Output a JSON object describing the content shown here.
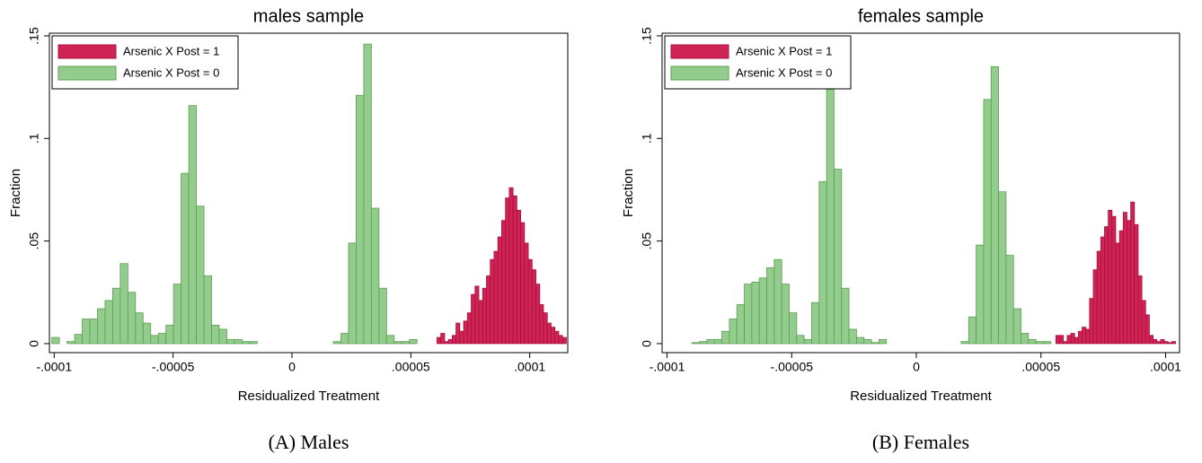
{
  "chart_data": [
    {
      "type": "histogram",
      "title": "males sample",
      "xlabel": "Residualized Treatment",
      "ylabel": "Fraction",
      "caption": "(A) Males",
      "xlim": [
        -0.000102,
        0.000116
      ],
      "ylim": [
        -0.0044,
        0.1513
      ],
      "xticks": [
        {
          "value": -0.0001,
          "label": "-.0001"
        },
        {
          "value": -5e-05,
          "label": "-.00005"
        },
        0,
        {
          "value": 5e-05,
          "label": ".00005"
        },
        {
          "value": 0.0001,
          "label": ".0001"
        }
      ],
      "yticks": [
        0,
        {
          "value": 0.05,
          "label": ".05"
        },
        {
          "value": 0.1,
          "label": ".1"
        },
        {
          "value": 0.15,
          "label": ".15"
        }
      ],
      "legend": "upper left",
      "series": [
        {
          "name": "Arsenic X Post = 1",
          "color": "#cf2355",
          "edgecolor": "#a8103e",
          "bins": [
            6.1e-05,
            6.26e-05,
            6.42e-05,
            6.58e-05,
            6.74e-05,
            6.9e-05,
            7.06e-05,
            7.22e-05,
            7.38e-05,
            7.54e-05,
            7.7e-05,
            7.86e-05,
            8.02e-05,
            8.18e-05,
            8.34e-05,
            8.5e-05,
            8.66e-05,
            8.82e-05,
            8.98e-05,
            9.14e-05,
            9.3e-05,
            9.46e-05,
            9.62e-05,
            9.78e-05,
            9.94e-05,
            0.000101,
            0.0001026,
            0.0001042,
            0.0001058,
            0.0001074,
            0.000109,
            0.0001106,
            0.0001122,
            0.0001138,
            0.0001154
          ],
          "values": [
            0.003,
            0.005,
            0.001,
            0.002,
            0.004,
            0.01,
            0.006,
            0.011,
            0.015,
            0.024,
            0.028,
            0.021,
            0.027,
            0.033,
            0.041,
            0.045,
            0.052,
            0.06,
            0.071,
            0.076,
            0.072,
            0.065,
            0.059,
            0.049,
            0.041,
            0.036,
            0.029,
            0.019,
            0.015,
            0.01,
            0.008,
            0.006,
            0.004,
            0.003
          ]
        },
        {
          "name": "Arsenic X Post = 0",
          "color": "#93cc8c",
          "edgecolor": "#5a9f52",
          "bins": [
            -0.000101,
            -9.78e-05,
            -9.46e-05,
            -9.14e-05,
            -8.82e-05,
            -8.5e-05,
            -8.18e-05,
            -7.86e-05,
            -7.54e-05,
            -7.22e-05,
            -6.9e-05,
            -6.58e-05,
            -6.26e-05,
            -5.94e-05,
            -5.62e-05,
            -5.3e-05,
            -4.98e-05,
            -4.66e-05,
            -4.34e-05,
            -4.02e-05,
            -3.7e-05,
            -3.38e-05,
            -3.06e-05,
            -2.74e-05,
            -2.42e-05,
            -2.1e-05,
            -1.78e-05,
            -1.46e-05,
            -1.14e-05,
            -8.2e-06,
            -5e-06,
            -1.8e-06,
            1.4e-06,
            4.6e-06,
            7.8e-06,
            1.1e-05,
            1.42e-05,
            1.74e-05,
            2.06e-05,
            2.38e-05,
            2.7e-05,
            3.02e-05,
            3.34e-05,
            3.66e-05,
            3.98e-05,
            4.3e-05,
            4.62e-05,
            4.94e-05,
            5.26e-05
          ],
          "values": [
            0.003,
            0,
            0.001,
            0.0045,
            0.012,
            0.012,
            0.017,
            0.021,
            0.027,
            0.039,
            0.025,
            0.015,
            0.01,
            0.004,
            0.005,
            0.009,
            0.029,
            0.083,
            0.116,
            0.067,
            0.033,
            0.009,
            0.007,
            0.002,
            0.002,
            0.001,
            0.001,
            0,
            0,
            0,
            0,
            0,
            0,
            0,
            0,
            0,
            0,
            0.001,
            0.005,
            0.049,
            0.121,
            0.146,
            0.066,
            0.027,
            0.004,
            0.001,
            0.001,
            0.002
          ]
        }
      ]
    },
    {
      "type": "histogram",
      "title": "females sample",
      "xlabel": "Residualized Treatment",
      "ylabel": "Fraction",
      "caption": "(B) Females",
      "xlim": [
        -0.000102,
        0.0001056
      ],
      "ylim": [
        -0.0044,
        0.1513
      ],
      "xticks": [
        {
          "value": -0.0001,
          "label": "-.0001"
        },
        {
          "value": -5e-05,
          "label": "-.00005"
        },
        0,
        {
          "value": 5e-05,
          "label": ".00005"
        },
        {
          "value": 0.0001,
          "label": ".0001"
        }
      ],
      "yticks": [
        0,
        {
          "value": 0.05,
          "label": ".05"
        },
        {
          "value": 0.1,
          "label": ".1"
        },
        {
          "value": 0.15,
          "label": ".15"
        }
      ],
      "legend": "upper left",
      "series": [
        {
          "name": "Arsenic X Post = 1",
          "color": "#cf2355",
          "edgecolor": "#a8103e",
          "bins": [
            5.6e-05,
            5.75e-05,
            5.9e-05,
            6.05e-05,
            6.2e-05,
            6.35e-05,
            6.5e-05,
            6.65e-05,
            6.8e-05,
            6.95e-05,
            7.1e-05,
            7.25e-05,
            7.4e-05,
            7.55e-05,
            7.7e-05,
            7.85e-05,
            8e-05,
            8.15e-05,
            8.3e-05,
            8.45e-05,
            8.6e-05,
            8.75e-05,
            8.9e-05,
            9.05e-05,
            9.2e-05,
            9.35e-05,
            9.5e-05,
            9.65e-05,
            9.8e-05,
            9.95e-05,
            0.000101,
            0.0001025,
            0.000104
          ],
          "values": [
            0.004,
            0.004,
            0.001,
            0.004,
            0.005,
            0.003,
            0.006,
            0.008,
            0.007,
            0.022,
            0.036,
            0.045,
            0.052,
            0.057,
            0.065,
            0.062,
            0.049,
            0.055,
            0.064,
            0.06,
            0.069,
            0.058,
            0.033,
            0.021,
            0.014,
            0.004,
            0.002,
            0.001,
            0.002,
            0.001,
            0.0005,
            0.001
          ]
        },
        {
          "name": "Arsenic X Post = 0",
          "color": "#93cc8c",
          "edgecolor": "#5a9f52",
          "bins": [
            -9e-05,
            -8.7e-05,
            -8.4e-05,
            -8.1e-05,
            -7.8e-05,
            -7.5e-05,
            -7.2e-05,
            -6.9e-05,
            -6.6e-05,
            -6.3e-05,
            -6e-05,
            -5.7e-05,
            -5.4e-05,
            -5.1e-05,
            -4.8e-05,
            -4.5e-05,
            -4.2e-05,
            -3.9e-05,
            -3.6e-05,
            -3.3e-05,
            -3e-05,
            -2.7e-05,
            -2.4e-05,
            -2.1e-05,
            -1.8e-05,
            -1.5e-05,
            -1.2e-05,
            -9e-06,
            -6e-06,
            -3e-06,
            0,
            3e-06,
            6e-06,
            9e-06,
            1.2e-05,
            1.5e-05,
            1.8e-05,
            2.1e-05,
            2.4e-05,
            2.7e-05,
            3e-05,
            3.3e-05,
            3.6e-05,
            3.9e-05,
            4.2e-05,
            4.5e-05,
            4.8e-05,
            5.1e-05,
            5.4e-05
          ],
          "values": [
            0.0005,
            0.001,
            0.002,
            0.002,
            0.006,
            0.012,
            0.019,
            0.029,
            0.03,
            0.032,
            0.037,
            0.041,
            0.029,
            0.015,
            0.004,
            0.002,
            0.02,
            0.079,
            0.124,
            0.085,
            0.027,
            0.007,
            0.003,
            0.002,
            0.0005,
            0.002,
            0,
            0,
            0,
            0,
            0,
            0,
            0,
            0,
            0,
            0,
            0.001,
            0.013,
            0.048,
            0.119,
            0.135,
            0.074,
            0.043,
            0.017,
            0.005,
            0.002,
            0.001,
            0.001
          ]
        }
      ]
    }
  ]
}
